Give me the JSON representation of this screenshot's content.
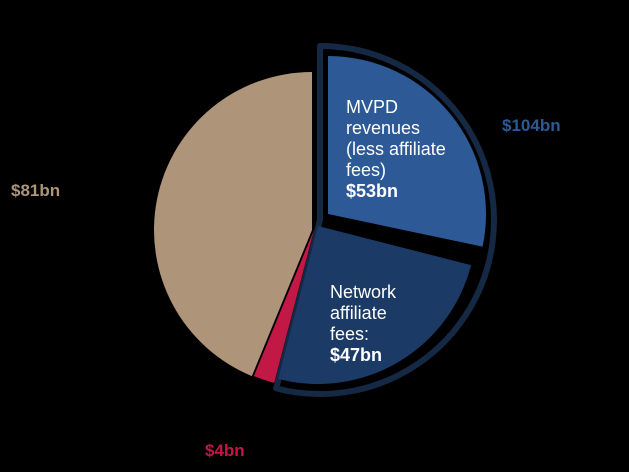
{
  "chart_data": {
    "type": "pie",
    "title": "",
    "colors": {
      "other": "#ae9479",
      "small": "#c11845",
      "mvpd": "#2d5a96",
      "network": "#1b3a66",
      "ring": "#152844",
      "background": "#000000"
    },
    "slices": [
      {
        "key": "mvpd",
        "value": 53,
        "label_lines": [
          "MVPD",
          "revenues",
          "(less affiliate",
          "fees)"
        ],
        "value_label": "$53bn"
      },
      {
        "key": "network",
        "value": 47,
        "label_lines": [
          "Network",
          "affiliate",
          "fees:"
        ],
        "value_label": "$47bn"
      },
      {
        "key": "small",
        "value": 4,
        "value_label": "$4bn"
      },
      {
        "key": "other",
        "value": 81,
        "value_label": "$81bn"
      }
    ],
    "group_label": "$104bn",
    "group_label_color": "#2d5a96"
  }
}
